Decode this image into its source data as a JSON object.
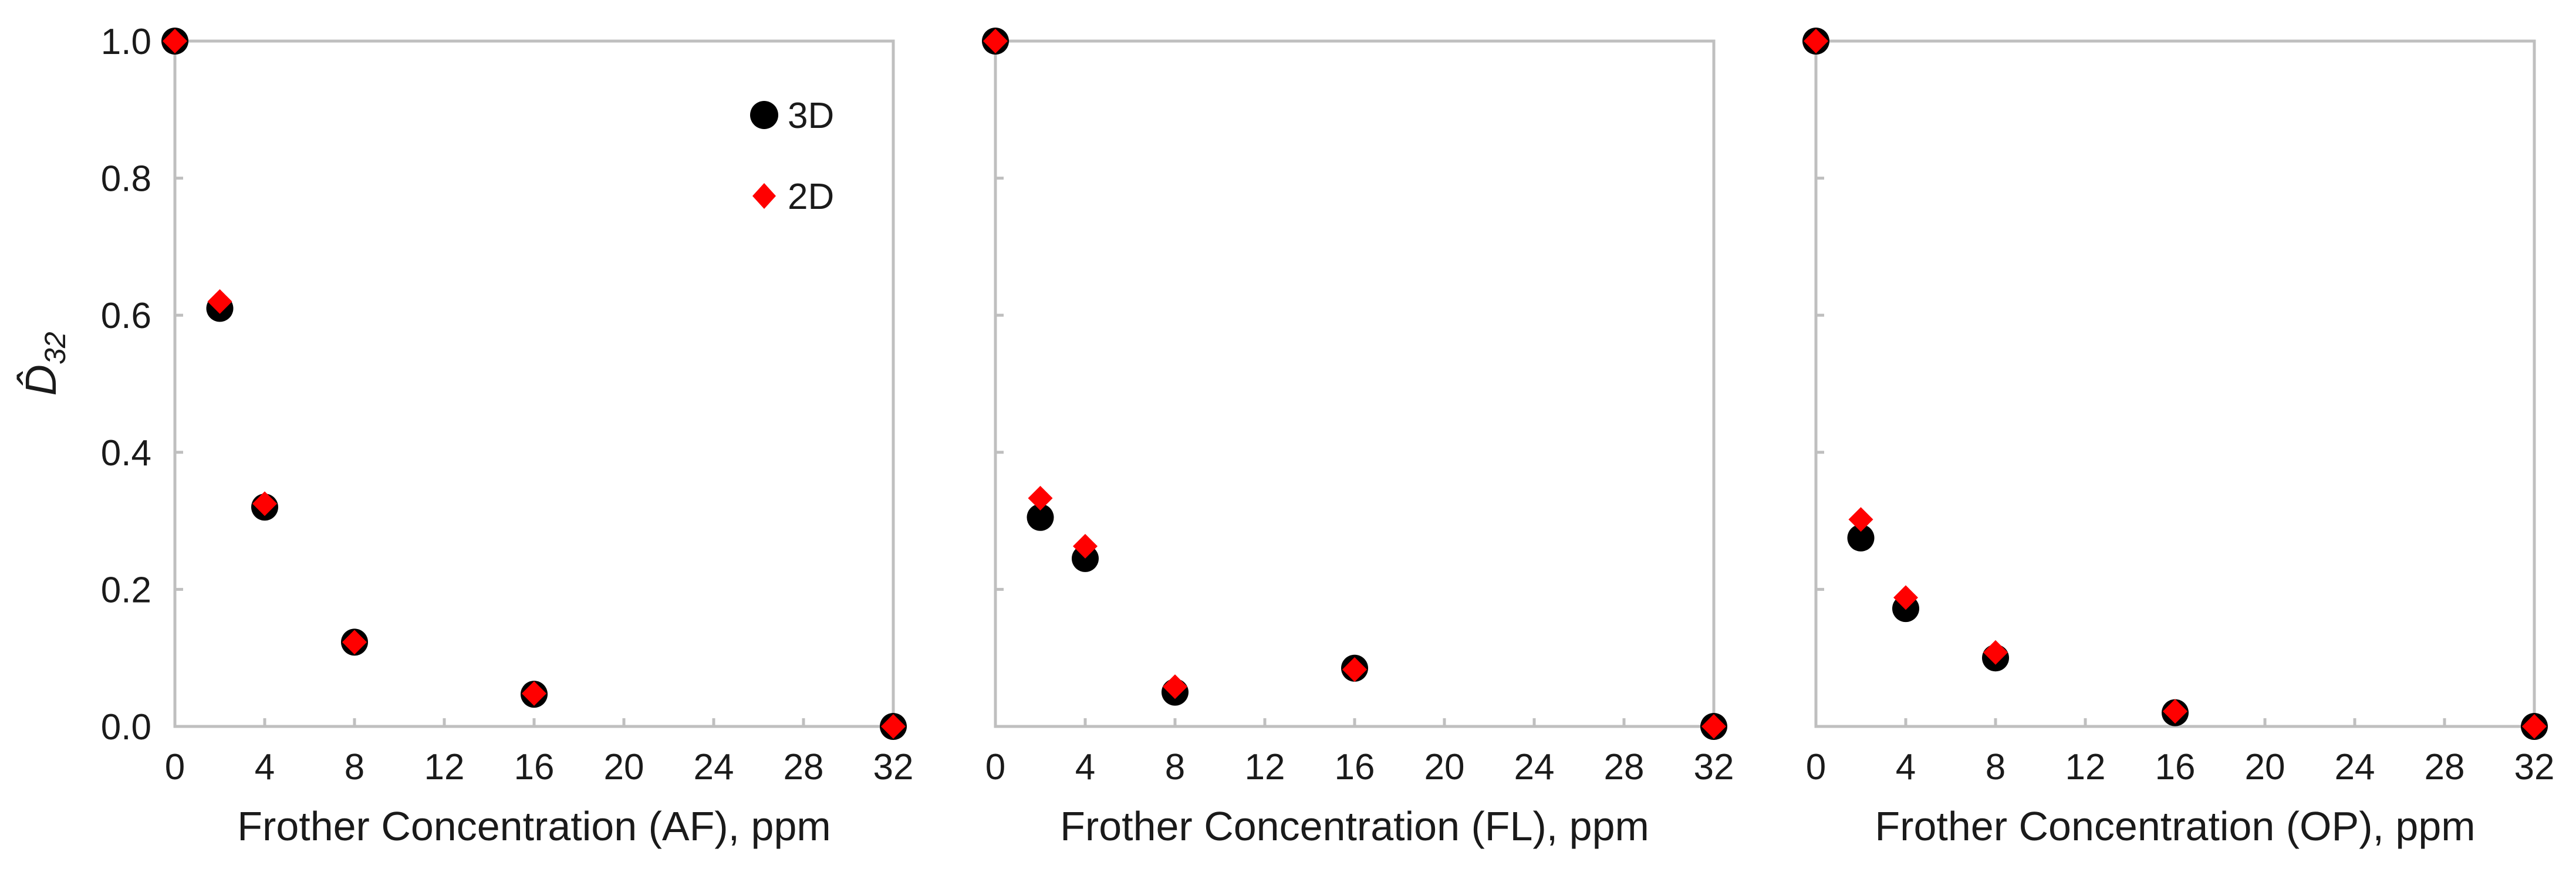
{
  "chart_data": [
    {
      "type": "scatter",
      "panel": "AF",
      "xlabel": "Frother Concentration (AF), ppm",
      "ylabel": "D̂32",
      "xlim": [
        0,
        32
      ],
      "ylim": [
        0,
        1.0
      ],
      "x_ticks": [
        "0",
        "4",
        "8",
        "12",
        "16",
        "20",
        "24",
        "28",
        "32"
      ],
      "y_ticks": [
        "0.0",
        "0.2",
        "0.4",
        "0.6",
        "0.8",
        "1.0"
      ],
      "grid": false,
      "legend": "top-right",
      "series": [
        {
          "name": "3D",
          "color": "#000000",
          "marker": "circle",
          "points": [
            [
              0,
              1.0
            ],
            [
              2,
              0.61
            ],
            [
              4,
              0.32
            ],
            [
              8,
              0.123
            ],
            [
              16,
              0.047
            ],
            [
              32,
              0.0
            ]
          ]
        },
        {
          "name": "2D",
          "color": "#ff0000",
          "marker": "diamond",
          "points": [
            [
              0,
              1.0
            ],
            [
              2,
              0.62
            ],
            [
              4,
              0.325
            ],
            [
              8,
              0.123
            ],
            [
              16,
              0.048
            ],
            [
              32,
              0.0
            ]
          ]
        }
      ]
    },
    {
      "type": "scatter",
      "panel": "FL",
      "xlabel": "Frother Concentration (FL), ppm",
      "xlim": [
        0,
        32
      ],
      "ylim": [
        0,
        1.0
      ],
      "x_ticks": [
        "0",
        "4",
        "8",
        "12",
        "16",
        "20",
        "24",
        "28",
        "32"
      ],
      "grid": false,
      "series": [
        {
          "name": "3D",
          "color": "#000000",
          "marker": "circle",
          "points": [
            [
              0,
              1.0
            ],
            [
              2,
              0.305
            ],
            [
              4,
              0.245
            ],
            [
              8,
              0.05
            ],
            [
              16,
              0.085
            ],
            [
              32,
              0.0
            ]
          ]
        },
        {
          "name": "2D",
          "color": "#ff0000",
          "marker": "diamond",
          "points": [
            [
              0,
              1.0
            ],
            [
              2,
              0.333
            ],
            [
              4,
              0.263
            ],
            [
              8,
              0.058
            ],
            [
              16,
              0.083
            ],
            [
              32,
              0.0
            ]
          ]
        }
      ]
    },
    {
      "type": "scatter",
      "panel": "OP",
      "xlabel": "Frother Concentration (OP), ppm",
      "xlim": [
        0,
        32
      ],
      "ylim": [
        0,
        1.0
      ],
      "x_ticks": [
        "0",
        "4",
        "8",
        "12",
        "16",
        "20",
        "24",
        "28",
        "32"
      ],
      "grid": false,
      "series": [
        {
          "name": "3D",
          "color": "#000000",
          "marker": "circle",
          "points": [
            [
              0,
              1.0
            ],
            [
              2,
              0.275
            ],
            [
              4,
              0.172
            ],
            [
              8,
              0.1
            ],
            [
              16,
              0.02
            ],
            [
              32,
              0.0
            ]
          ]
        },
        {
          "name": "2D",
          "color": "#ff0000",
          "marker": "diamond",
          "points": [
            [
              0,
              1.0
            ],
            [
              2,
              0.302
            ],
            [
              4,
              0.188
            ],
            [
              8,
              0.108
            ],
            [
              16,
              0.022
            ],
            [
              32,
              0.0
            ]
          ]
        }
      ]
    }
  ],
  "legend": {
    "items": [
      {
        "label": "3D",
        "color": "#000000",
        "marker": "circle"
      },
      {
        "label": "2D",
        "color": "#ff0000",
        "marker": "diamond"
      }
    ]
  },
  "ylabel": {
    "main": "D̂",
    "sub": "32"
  }
}
